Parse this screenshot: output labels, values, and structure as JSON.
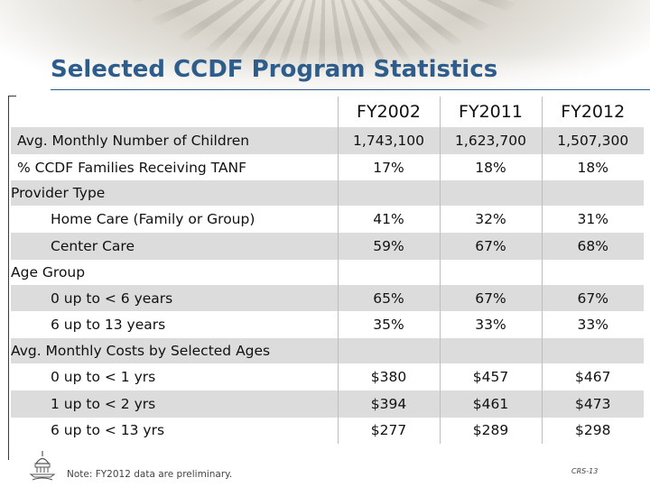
{
  "title": "Selected CCDF Program Statistics",
  "table": {
    "headers": [
      "",
      "FY2002",
      "FY2011",
      "FY2012"
    ],
    "rows": [
      {
        "label": "Avg. Monthly Number of Children",
        "values": [
          "1,743,100",
          "1,623,700",
          "1,507,300"
        ]
      },
      {
        "label": "% CCDF Families Receiving TANF",
        "values": [
          "17%",
          "18%",
          "18%"
        ]
      },
      {
        "section": "Provider Type"
      },
      {
        "label": "Home Care (Family or Group)",
        "values": [
          "41%",
          "32%",
          "31%"
        ]
      },
      {
        "label": "Center Care",
        "values": [
          "59%",
          "67%",
          "68%"
        ]
      },
      {
        "section": "Age Group"
      },
      {
        "label": "0 up to < 6 years",
        "values": [
          "65%",
          "67%",
          "67%"
        ]
      },
      {
        "label": "6 up to 13 years",
        "values": [
          "35%",
          "33%",
          "33%"
        ]
      },
      {
        "section": "Avg. Monthly Costs by Selected Ages"
      },
      {
        "label": "0 up to < 1 yrs",
        "values": [
          "$380",
          "$457",
          "$467"
        ]
      },
      {
        "label": "1 up to < 2 yrs",
        "values": [
          "$394",
          "$461",
          "$473"
        ]
      },
      {
        "label": "6 up to < 13 yrs",
        "values": [
          "$277",
          "$289",
          "$298"
        ]
      }
    ]
  },
  "footer": {
    "note": "Note:  FY2012 data are preliminary.",
    "slide_number": "CRS-13",
    "logo_icon": "capitol-dome-icon"
  },
  "colors": {
    "title": "#2e5d8c",
    "row_shade": "#dcdcdc"
  }
}
